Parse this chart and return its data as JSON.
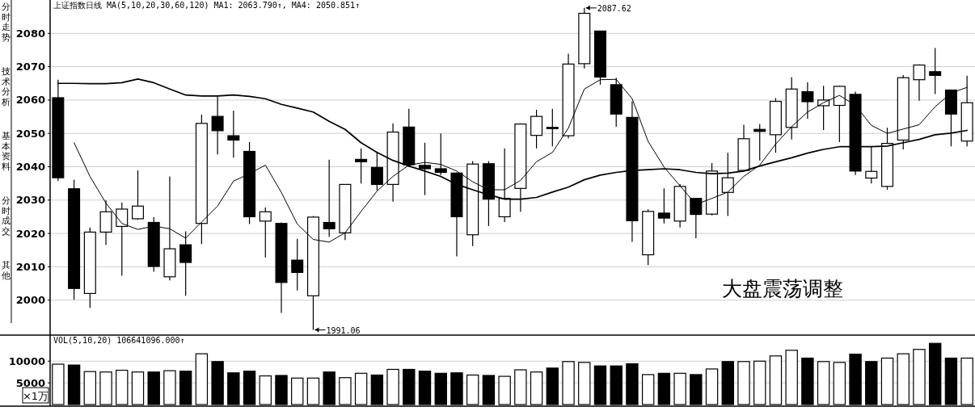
{
  "chart_data": [
    {
      "type": "candlestick",
      "title": "上证指数日线 MA(5,10,20,30,60,120) MA1: 2063.790↑, MA4: 2050.851↑",
      "categories": [
        null,
        null,
        null,
        null,
        null,
        null,
        null,
        null,
        null,
        null,
        null,
        null,
        null,
        null,
        null,
        null,
        null,
        null,
        null,
        null,
        null,
        null,
        null,
        null,
        null,
        null,
        null,
        null,
        null,
        null,
        null,
        null,
        null,
        null,
        null,
        null,
        null,
        null,
        null,
        null,
        null,
        null,
        null,
        null,
        null,
        null,
        null,
        null,
        null,
        null,
        null,
        null,
        null,
        null,
        null,
        null,
        null,
        null
      ],
      "ohlc": [
        [
          2060.7,
          2066.1,
          2035.7,
          2036.7
        ],
        [
          2033.4,
          2036.1,
          2000.1,
          2003.5
        ],
        [
          2002.0,
          2021.8,
          1997.7,
          2020.4
        ],
        [
          2020.4,
          2029.9,
          2016.6,
          2026.5
        ],
        [
          2022.1,
          2029.3,
          2007.3,
          2027.3
        ],
        [
          2024.4,
          2038.9,
          2024.1,
          2028.2
        ],
        [
          2023.3,
          2024.9,
          2008.5,
          2010.1
        ],
        [
          2007.0,
          2037.1,
          2005.9,
          2015.4
        ],
        [
          2016.6,
          2020.6,
          2001.3,
          2011.3
        ],
        [
          2023.0,
          2055.6,
          2016.8,
          2053.0
        ],
        [
          2055.1,
          2061.1,
          2043.7,
          2050.8
        ],
        [
          2049.3,
          2056.8,
          2042.7,
          2048.0
        ],
        [
          2044.6,
          2047.4,
          2022.8,
          2025.0
        ],
        [
          2023.7,
          2027.8,
          2012.8,
          2026.5
        ],
        [
          2023.0,
          2023.3,
          1996.2,
          2005.3
        ],
        [
          2012.0,
          2018.4,
          2002.9,
          2008.3
        ],
        [
          2001.3,
          2025.2,
          1991.06,
          2024.9
        ],
        [
          2023.3,
          2042.1,
          2019.0,
          2021.4
        ],
        [
          2020.2,
          2034.7,
          2018.0,
          2034.7
        ],
        [
          2042.2,
          2045.5,
          2035.0,
          2041.5
        ],
        [
          2039.8,
          2044.4,
          2032.9,
          2034.7
        ],
        [
          2034.7,
          2053.0,
          2029.5,
          2050.4
        ],
        [
          2051.9,
          2057.4,
          2039.9,
          2040.6
        ],
        [
          2040.4,
          2047.2,
          2031.5,
          2039.4
        ],
        [
          2039.4,
          2050.0,
          2037.5,
          2038.3
        ],
        [
          2038.1,
          2038.3,
          2013.1,
          2025.0
        ],
        [
          2019.6,
          2041.7,
          2016.2,
          2040.8
        ],
        [
          2040.9,
          2041.7,
          2022.2,
          2030.3
        ],
        [
          2025.0,
          2045.5,
          2023.4,
          2030.5
        ],
        [
          2033.5,
          2053.0,
          2026.5,
          2052.8
        ],
        [
          2049.4,
          2057.1,
          2045.5,
          2055.1
        ],
        [
          2051.8,
          2057.4,
          2046.1,
          2051.8
        ],
        [
          2049.3,
          2073.9,
          2048.5,
          2070.8
        ],
        [
          2070.9,
          2087.62,
          2069.5,
          2086.0
        ],
        [
          2080.7,
          2080.7,
          2064.6,
          2066.9
        ],
        [
          2064.6,
          2066.7,
          2052.0,
          2055.8
        ],
        [
          2054.8,
          2059.6,
          2017.5,
          2023.8
        ],
        [
          2013.6,
          2027.2,
          2010.5,
          2026.6
        ],
        [
          2026.1,
          2033.5,
          2023.0,
          2024.6
        ],
        [
          2023.7,
          2034.8,
          2021.8,
          2034.1
        ],
        [
          2030.5,
          2030.5,
          2018.6,
          2025.7
        ],
        [
          2025.8,
          2041.1,
          2025.4,
          2038.7
        ],
        [
          2032.3,
          2044.2,
          2025.2,
          2036.7
        ],
        [
          2038.9,
          2052.6,
          2038.7,
          2048.4
        ],
        [
          2051.2,
          2052.8,
          2041.9,
          2050.6
        ],
        [
          2049.6,
          2060.6,
          2044.2,
          2059.6
        ],
        [
          2051.8,
          2066.9,
          2048.2,
          2063.3
        ],
        [
          2062.5,
          2065.3,
          2054.4,
          2059.5
        ],
        [
          2058.3,
          2064.3,
          2051.0,
          2060.0
        ],
        [
          2058.4,
          2064.3,
          2047.4,
          2064.1
        ],
        [
          2061.7,
          2062.5,
          2037.5,
          2038.7
        ],
        [
          2036.6,
          2046.1,
          2035.0,
          2038.6
        ],
        [
          2034.1,
          2051.7,
          2033.1,
          2047.0
        ],
        [
          2048.0,
          2067.5,
          2045.2,
          2066.7
        ],
        [
          2066.1,
          2070.7,
          2059.8,
          2070.5
        ],
        [
          2068.5,
          2075.6,
          2061.8,
          2067.4
        ],
        [
          2063.0,
          2063.0,
          2046.1,
          2055.8
        ],
        [
          2047.7,
          2067.3,
          2046.1,
          2059.2
        ]
      ],
      "colors": [
        "#000000",
        "#000000",
        "#ffffff",
        "#ffffff",
        "#ffffff",
        "#ffffff",
        "#000000",
        "#ffffff",
        "#000000",
        "#ffffff",
        "#000000",
        "#000000",
        "#000000",
        "#ffffff",
        "#000000",
        "#000000",
        "#ffffff",
        "#000000",
        "#ffffff",
        "#000000",
        "#000000",
        "#ffffff",
        "#000000",
        "#000000",
        "#000000",
        "#000000",
        "#ffffff",
        "#000000",
        "#ffffff",
        "#ffffff",
        "#ffffff",
        "#000000",
        "#ffffff",
        "#ffffff",
        "#000000",
        "#000000",
        "#000000",
        "#ffffff",
        "#000000",
        "#ffffff",
        "#000000",
        "#ffffff",
        "#ffffff",
        "#ffffff",
        "#000000",
        "#ffffff",
        "#ffffff",
        "#000000",
        "#ffffff",
        "#ffffff",
        "#000000",
        "#ffffff",
        "#ffffff",
        "#ffffff",
        "#ffffff",
        "#000000",
        "#000000",
        "#ffffff"
      ],
      "series": [
        {
          "type": "line",
          "color": "#000000",
          "values": [
            null,
            2047.2,
            2037.1,
            2029.1,
            2023.0,
            2021.2,
            2022.2,
            2021.4,
            2018.6,
            2023.4,
            2028.2,
            2035.7,
            2037.9,
            2040.5,
            2032.3,
            2022.8,
            2018.2,
            2017.4,
            2020.2,
            2026.6,
            2032.7,
            2037.1,
            2040.5,
            2041.3,
            2040.7,
            2038.7,
            2035.5,
            2033.1,
            2033.1,
            2035.9,
            2041.5,
            2044.3,
            2051.6,
            2063.3,
            2066.1,
            2066.2,
            2060.4,
            2047.6,
            2039.9,
            2034.3,
            2028.7,
            2030.5,
            2032.4,
            2037.1,
            2040.5,
            2046.8,
            2052.0,
            2056.4,
            2059.2,
            2061.4,
            2058.4,
            2052.4,
            2050.0,
            2051.3,
            2052.6,
            2058.0,
            2062.1,
            2063.8
          ]
        },
        {
          "type": "line",
          "color": "#000000",
          "values": [
            2065.0,
            2065.0,
            2064.9,
            2064.9,
            2065.2,
            2066.3,
            2065.2,
            2063.3,
            2061.5,
            2061.2,
            2061.2,
            2061.5,
            2061.1,
            2060.4,
            2058.7,
            2057.6,
            2056.4,
            2053.6,
            2051.2,
            2047.2,
            2044.3,
            2041.9,
            2040.2,
            2038.7,
            2037.1,
            2034.7,
            2033.1,
            2031.6,
            2030.3,
            2030.3,
            2030.8,
            2032.4,
            2033.9,
            2036.1,
            2037.5,
            2038.3,
            2038.9,
            2039.1,
            2039.4,
            2039.1,
            2038.3,
            2037.9,
            2038.1,
            2038.7,
            2040.2,
            2041.5,
            2042.7,
            2044.1,
            2045.2,
            2046.0,
            2046.0,
            2046.0,
            2046.2,
            2047.2,
            2048.2,
            2049.6,
            2050.1,
            2050.9
          ]
        }
      ],
      "ylim": [
        1990,
        2090
      ],
      "yticks": [
        2000,
        2010,
        2020,
        2030,
        2040,
        2050,
        2060,
        2070,
        2080
      ],
      "grid": "y",
      "tick_labels": "y",
      "annotations": [
        "大盘震荡调整",
        "分时走势",
        "技术分析",
        "基本资料",
        "分时成交",
        "其他",
        "2087.62",
        "1991.06"
      ]
    },
    {
      "type": "bar",
      "title": "VOL(5,10,20) 106641096.000↑",
      "ylabel": "×1万",
      "categories": [
        null,
        null,
        null,
        null,
        null,
        null,
        null,
        null,
        null,
        null,
        null,
        null,
        null,
        null,
        null,
        null,
        null,
        null,
        null,
        null,
        null,
        null,
        null,
        null,
        null,
        null,
        null,
        null,
        null,
        null,
        null,
        null,
        null,
        null,
        null,
        null,
        null,
        null,
        null,
        null,
        null,
        null,
        null,
        null,
        null,
        null,
        null,
        null,
        null,
        null,
        null,
        null,
        null,
        null,
        null,
        null,
        null,
        null
      ],
      "values": [
        9300,
        9100,
        7600,
        7500,
        7900,
        7500,
        7500,
        7800,
        7700,
        11700,
        9900,
        7300,
        7700,
        6600,
        6700,
        6100,
        6100,
        7500,
        6200,
        7200,
        6800,
        8100,
        8100,
        7700,
        7200,
        7300,
        6800,
        6700,
        6500,
        8000,
        7500,
        8400,
        9900,
        9700,
        8900,
        8900,
        9400,
        6900,
        7200,
        7200,
        6900,
        8200,
        9900,
        9900,
        10000,
        11200,
        12500,
        10700,
        9900,
        9700,
        11600,
        9900,
        10700,
        11700,
        12700,
        14100,
        10700,
        10700
      ],
      "colors": [
        "#ffffff",
        "#000000",
        "#ffffff",
        "#ffffff",
        "#ffffff",
        "#ffffff",
        "#000000",
        "#ffffff",
        "#000000",
        "#ffffff",
        "#000000",
        "#000000",
        "#000000",
        "#ffffff",
        "#000000",
        "#ffffff",
        "#ffffff",
        "#000000",
        "#ffffff",
        "#ffffff",
        "#000000",
        "#ffffff",
        "#000000",
        "#000000",
        "#000000",
        "#000000",
        "#ffffff",
        "#000000",
        "#ffffff",
        "#ffffff",
        "#ffffff",
        "#000000",
        "#ffffff",
        "#ffffff",
        "#000000",
        "#000000",
        "#000000",
        "#ffffff",
        "#000000",
        "#ffffff",
        "#000000",
        "#ffffff",
        "#000000",
        "#ffffff",
        "#ffffff",
        "#ffffff",
        "#ffffff",
        "#000000",
        "#ffffff",
        "#ffffff",
        "#000000",
        "#000000",
        "#ffffff",
        "#ffffff",
        "#ffffff",
        "#000000",
        "#000000",
        "#ffffff"
      ],
      "ylim": [
        0,
        16000
      ],
      "yticks": [
        5000,
        10000
      ],
      "grid": "y",
      "tick_labels": "y"
    }
  ]
}
